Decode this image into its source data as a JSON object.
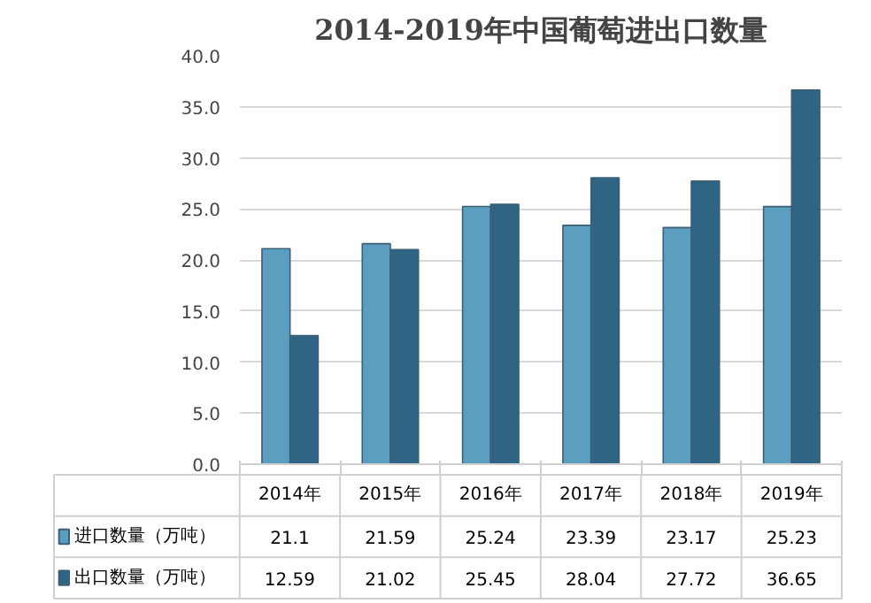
{
  "chart_data": {
    "type": "bar",
    "title": "2014-2019年中国葡萄进出口数量",
    "categories": [
      "2014年",
      "2015年",
      "2016年",
      "2017年",
      "2018年",
      "2019年"
    ],
    "series": [
      {
        "name": "进口数量（万吨）",
        "color": "#5b9ec0",
        "values": [
          21.1,
          21.59,
          25.24,
          23.39,
          23.17,
          25.23
        ]
      },
      {
        "name": "出口数量（万吨）",
        "color": "#2f6484",
        "values": [
          12.59,
          21.02,
          25.45,
          28.04,
          27.72,
          36.65
        ]
      }
    ],
    "ylim": [
      0,
      40
    ],
    "yticks": [
      {
        "value": 0,
        "label": "0.0"
      },
      {
        "value": 5,
        "label": "5.0"
      },
      {
        "value": 10,
        "label": "10.0"
      },
      {
        "value": 15,
        "label": "15.0"
      },
      {
        "value": 20,
        "label": "20.0"
      },
      {
        "value": 25,
        "label": "25.0"
      },
      {
        "value": 30,
        "label": "30.0"
      },
      {
        "value": 35,
        "label": "35.0"
      },
      {
        "value": 40,
        "label": "40.0"
      }
    ],
    "grid": "y",
    "legend": "bottom",
    "data_labels": true
  }
}
